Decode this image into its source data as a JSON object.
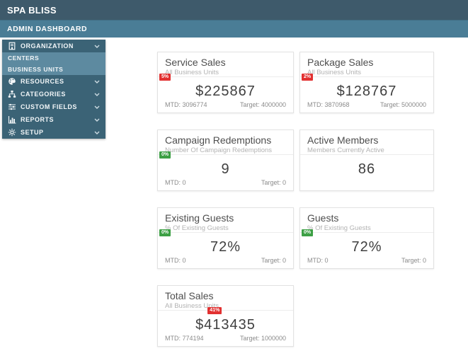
{
  "topbar": {
    "brand": "SPA BLISS"
  },
  "pagebar": {
    "title": "ADMIN DASHBOARD"
  },
  "colors": {
    "topbar_bg": "#3e5a6b",
    "pagebar_bg": "#4a7d96",
    "sidebar_bg": "#3b6376",
    "sidebar_submenu_bg": "#5d8aa0",
    "badge_red": "#e23131",
    "badge_green": "#3da045"
  },
  "sidebar": {
    "items": [
      {
        "label": "ORGANIZATION",
        "icon": "building-icon",
        "expanded": true,
        "children": [
          "CENTERS",
          "BUSINESS UNITS"
        ]
      },
      {
        "label": "RESOURCES",
        "icon": "palette-icon"
      },
      {
        "label": "CATEGORIES",
        "icon": "sitemap-icon"
      },
      {
        "label": "CUSTOM FIELDS",
        "icon": "sliders-icon"
      },
      {
        "label": "REPORTS",
        "icon": "bar-chart-icon"
      },
      {
        "label": "SETUP",
        "icon": "gear-icon"
      }
    ]
  },
  "cards": [
    {
      "title": "Service Sales",
      "subtitle": "All Business Units",
      "badge": {
        "text": "5%",
        "color": "red",
        "percent": 5
      },
      "value": "$225867",
      "mtd": "MTD: 3096774",
      "target": "Target: 4000000"
    },
    {
      "title": "Package Sales",
      "subtitle": "All Business Units",
      "badge": {
        "text": "2%",
        "color": "red",
        "percent": 2
      },
      "value": "$128767",
      "mtd": "MTD: 3870968",
      "target": "Target: 5000000"
    },
    {
      "title": "Campaign Redemptions",
      "subtitle": "Number Of Campaign Redemptions",
      "badge": {
        "text": "0%",
        "color": "green",
        "percent": 0
      },
      "value": "9",
      "mtd": "MTD: 0",
      "target": "Target: 0"
    },
    {
      "title": "Active Members",
      "subtitle": "Members Currently Active",
      "badge": null,
      "value": "86",
      "mtd": null,
      "target": null
    },
    {
      "title": "Existing Guests",
      "subtitle": "% Of Existing Guests",
      "badge": {
        "text": "0%",
        "color": "green",
        "percent": 0
      },
      "value": "72%",
      "mtd": "MTD: 0",
      "target": "Target: 0"
    },
    {
      "title": "Guests",
      "subtitle": "% Of Existing Guests",
      "badge": {
        "text": "0%",
        "color": "green",
        "percent": 0
      },
      "value": "72%",
      "mtd": "MTD: 0",
      "target": "Target: 0"
    },
    {
      "title": "Total Sales",
      "subtitle": "All Business Units",
      "badge": {
        "text": "41%",
        "color": "red",
        "percent": 41
      },
      "value": "$413435",
      "mtd": "MTD: 774194",
      "target": "Target: 1000000"
    }
  ]
}
